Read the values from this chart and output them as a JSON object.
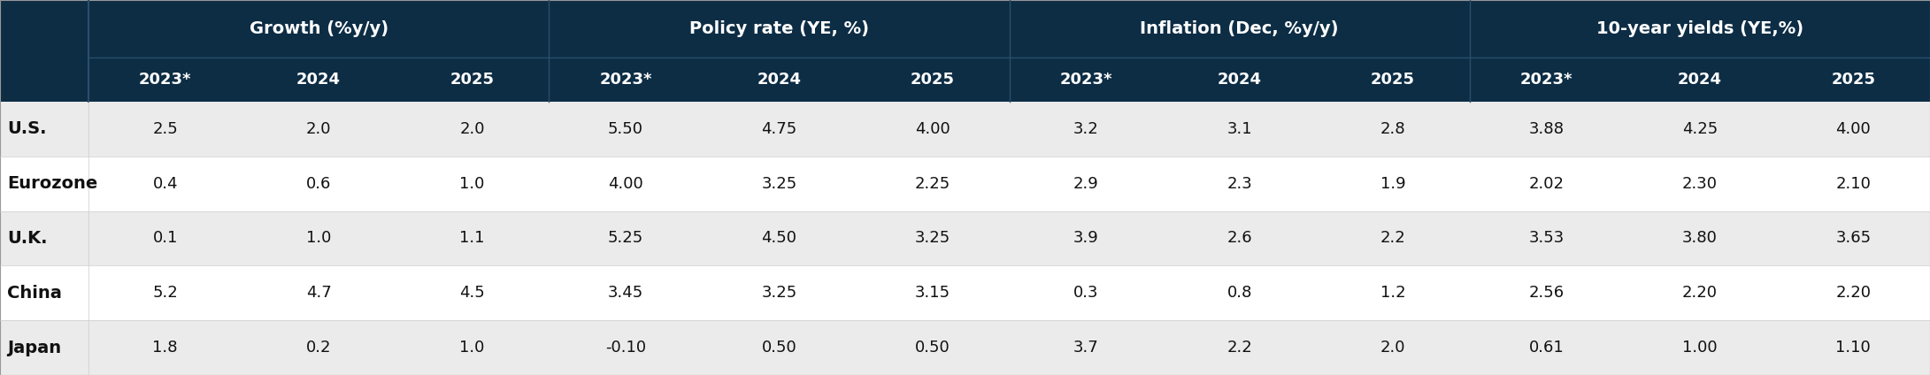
{
  "header_bg": "#0d2d45",
  "header_text_color": "#ffffff",
  "row_bg_odd": "#ebebeb",
  "row_bg_even": "#ffffff",
  "row_text_color": "#111111",
  "group_headers": [
    "Growth (%y/y)",
    "Policy rate (YE, %)",
    "Inflation (Dec, %y/y)",
    "10-year yields (YE,%)"
  ],
  "years": [
    "2023*",
    "2024",
    "2025"
  ],
  "rows": [
    {
      "label": "U.S.",
      "values": [
        "2.5",
        "2.0",
        "2.0",
        "5.50",
        "4.75",
        "4.00",
        "3.2",
        "3.1",
        "2.8",
        "3.88",
        "4.25",
        "4.00"
      ]
    },
    {
      "label": "Eurozone",
      "values": [
        "0.4",
        "0.6",
        "1.0",
        "4.00",
        "3.25",
        "2.25",
        "2.9",
        "2.3",
        "1.9",
        "2.02",
        "2.30",
        "2.10"
      ]
    },
    {
      "label": "U.K.",
      "values": [
        "0.1",
        "1.0",
        "1.1",
        "5.25",
        "4.50",
        "3.25",
        "3.9",
        "2.6",
        "2.2",
        "3.53",
        "3.80",
        "3.65"
      ]
    },
    {
      "label": "China",
      "values": [
        "5.2",
        "4.7",
        "4.5",
        "3.45",
        "3.25",
        "3.15",
        "0.3",
        "0.8",
        "1.2",
        "2.56",
        "2.20",
        "2.20"
      ]
    },
    {
      "label": "Japan",
      "values": [
        "1.8",
        "0.2",
        "1.0",
        "-0.10",
        "0.50",
        "0.50",
        "3.7",
        "2.2",
        "2.0",
        "0.61",
        "1.00",
        "1.10"
      ]
    }
  ],
  "figsize": [
    21.81,
    4.24
  ],
  "dpi": 100,
  "n_groups": 4,
  "n_years": 3,
  "n_rows": 5,
  "group_header_fontsize": 14,
  "year_header_fontsize": 13,
  "data_fontsize": 13,
  "label_fontsize": 14
}
